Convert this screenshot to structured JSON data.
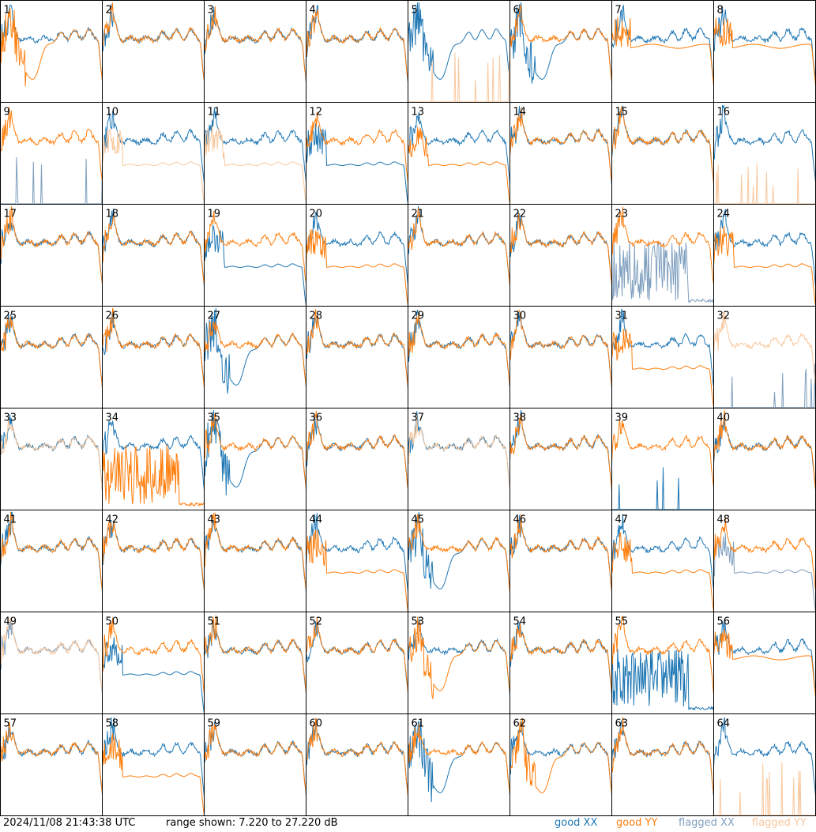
{
  "footer": {
    "timestamp": "2024/11/08 21:43:38 UTC",
    "range_text": "range shown: 7.220 to 27.220 dB"
  },
  "chart_data": {
    "type": "line",
    "grid": {
      "rows": 8,
      "cols": 8
    },
    "ylim": [
      7.22,
      27.22
    ],
    "yunit": "dB",
    "legend_placement": "bottom-right",
    "legend": [
      {
        "label": "good XX",
        "color": "#1f77b4"
      },
      {
        "label": "good YY",
        "color": "#ff7f0e"
      },
      {
        "label": "flagged XX",
        "color": "#7f9fbf"
      },
      {
        "label": "flagged YY",
        "color": "#f9c89e"
      }
    ],
    "panel_labels": [
      "1",
      "2",
      "3",
      "4",
      "5",
      "6",
      "7",
      "8",
      "9",
      "10",
      "11",
      "12",
      "13",
      "14",
      "15",
      "16",
      "17",
      "18",
      "19",
      "20",
      "21",
      "22",
      "23",
      "24",
      "25",
      "26",
      "27",
      "28",
      "29",
      "30",
      "31",
      "32",
      "33",
      "34",
      "35",
      "36",
      "37",
      "38",
      "39",
      "40",
      "41",
      "42",
      "43",
      "44",
      "45",
      "46",
      "47",
      "48",
      "49",
      "50",
      "51",
      "52",
      "53",
      "54",
      "55",
      "56",
      "57",
      "58",
      "59",
      "60",
      "61",
      "62",
      "63",
      "64"
    ],
    "panels": [
      {
        "id": 1,
        "xx": "good",
        "yy": "good",
        "xx_shape": "standard",
        "yy_shape": "dip"
      },
      {
        "id": 2,
        "xx": "good",
        "yy": "good",
        "xx_shape": "standard",
        "yy_shape": "standard"
      },
      {
        "id": 3,
        "xx": "good",
        "yy": "good",
        "xx_shape": "standard",
        "yy_shape": "standard"
      },
      {
        "id": 4,
        "xx": "good",
        "yy": "good",
        "xx_shape": "standard",
        "yy_shape": "standard"
      },
      {
        "id": 5,
        "xx": "good",
        "yy": "flagged",
        "xx_shape": "dip",
        "yy_shape": "spike"
      },
      {
        "id": 6,
        "xx": "good",
        "yy": "good",
        "xx_shape": "dip",
        "yy_shape": "standard"
      },
      {
        "id": 7,
        "xx": "good",
        "yy": "good",
        "xx_shape": "standard",
        "yy_shape": "flat"
      },
      {
        "id": 8,
        "xx": "good",
        "yy": "good",
        "xx_shape": "standard",
        "yy_shape": "flat"
      },
      {
        "id": 9,
        "xx": "flagged",
        "yy": "good",
        "xx_shape": "spike",
        "yy_shape": "standard"
      },
      {
        "id": 10,
        "xx": "good",
        "yy": "flagged",
        "xx_shape": "standard",
        "yy_shape": "low"
      },
      {
        "id": 11,
        "xx": "good",
        "yy": "flagged",
        "xx_shape": "standard",
        "yy_shape": "low"
      },
      {
        "id": 12,
        "xx": "good",
        "yy": "good",
        "xx_shape": "low",
        "yy_shape": "standard"
      },
      {
        "id": 13,
        "xx": "good",
        "yy": "good",
        "xx_shape": "standard",
        "yy_shape": "low"
      },
      {
        "id": 14,
        "xx": "good",
        "yy": "good",
        "xx_shape": "standard",
        "yy_shape": "standard"
      },
      {
        "id": 15,
        "xx": "good",
        "yy": "good",
        "xx_shape": "standard",
        "yy_shape": "standard"
      },
      {
        "id": 16,
        "xx": "good",
        "yy": "flagged",
        "xx_shape": "standard",
        "yy_shape": "spike"
      },
      {
        "id": 17,
        "xx": "good",
        "yy": "good",
        "xx_shape": "standard",
        "yy_shape": "standard"
      },
      {
        "id": 18,
        "xx": "good",
        "yy": "good",
        "xx_shape": "standard",
        "yy_shape": "standard"
      },
      {
        "id": 19,
        "xx": "good",
        "yy": "good",
        "xx_shape": "low",
        "yy_shape": "standard"
      },
      {
        "id": 20,
        "xx": "good",
        "yy": "good",
        "xx_shape": "standard",
        "yy_shape": "low"
      },
      {
        "id": 21,
        "xx": "good",
        "yy": "good",
        "xx_shape": "standard",
        "yy_shape": "standard"
      },
      {
        "id": 22,
        "xx": "good",
        "yy": "good",
        "xx_shape": "standard",
        "yy_shape": "standard"
      },
      {
        "id": 23,
        "xx": "flagged",
        "yy": "good",
        "xx_shape": "noise",
        "yy_shape": "standard"
      },
      {
        "id": 24,
        "xx": "good",
        "yy": "good",
        "xx_shape": "standard",
        "yy_shape": "low"
      },
      {
        "id": 25,
        "xx": "good",
        "yy": "good",
        "xx_shape": "standard",
        "yy_shape": "standard"
      },
      {
        "id": 26,
        "xx": "good",
        "yy": "good",
        "xx_shape": "standard",
        "yy_shape": "standard"
      },
      {
        "id": 27,
        "xx": "good",
        "yy": "good",
        "xx_shape": "dip",
        "yy_shape": "standard"
      },
      {
        "id": 28,
        "xx": "good",
        "yy": "good",
        "xx_shape": "standard",
        "yy_shape": "standard"
      },
      {
        "id": 29,
        "xx": "good",
        "yy": "good",
        "xx_shape": "standard",
        "yy_shape": "standard"
      },
      {
        "id": 30,
        "xx": "good",
        "yy": "good",
        "xx_shape": "standard",
        "yy_shape": "standard"
      },
      {
        "id": 31,
        "xx": "good",
        "yy": "good",
        "xx_shape": "standard",
        "yy_shape": "low"
      },
      {
        "id": 32,
        "xx": "flagged",
        "yy": "flagged",
        "xx_shape": "spike",
        "yy_shape": "standard"
      },
      {
        "id": 33,
        "xx": "good",
        "yy": "flagged",
        "xx_shape": "standard",
        "yy_shape": "standard"
      },
      {
        "id": 34,
        "xx": "good",
        "yy": "good",
        "xx_shape": "standard",
        "yy_shape": "noise"
      },
      {
        "id": 35,
        "xx": "good",
        "yy": "good",
        "xx_shape": "dip",
        "yy_shape": "standard"
      },
      {
        "id": 36,
        "xx": "good",
        "yy": "good",
        "xx_shape": "standard",
        "yy_shape": "standard"
      },
      {
        "id": 37,
        "xx": "good",
        "yy": "flagged",
        "xx_shape": "standard",
        "yy_shape": "standard"
      },
      {
        "id": 38,
        "xx": "good",
        "yy": "good",
        "xx_shape": "standard",
        "yy_shape": "standard"
      },
      {
        "id": 39,
        "xx": "good",
        "yy": "good",
        "xx_shape": "spike",
        "yy_shape": "standard"
      },
      {
        "id": 40,
        "xx": "good",
        "yy": "good",
        "xx_shape": "standard",
        "yy_shape": "standard"
      },
      {
        "id": 41,
        "xx": "good",
        "yy": "good",
        "xx_shape": "standard",
        "yy_shape": "standard"
      },
      {
        "id": 42,
        "xx": "good",
        "yy": "good",
        "xx_shape": "standard",
        "yy_shape": "standard"
      },
      {
        "id": 43,
        "xx": "good",
        "yy": "good",
        "xx_shape": "standard",
        "yy_shape": "standard"
      },
      {
        "id": 44,
        "xx": "good",
        "yy": "good",
        "xx_shape": "standard",
        "yy_shape": "low"
      },
      {
        "id": 45,
        "xx": "good",
        "yy": "good",
        "xx_shape": "dip",
        "yy_shape": "standard"
      },
      {
        "id": 46,
        "xx": "good",
        "yy": "good",
        "xx_shape": "standard",
        "yy_shape": "standard"
      },
      {
        "id": 47,
        "xx": "good",
        "yy": "good",
        "xx_shape": "standard",
        "yy_shape": "low"
      },
      {
        "id": 48,
        "xx": "flagged",
        "yy": "good",
        "xx_shape": "low",
        "yy_shape": "standard"
      },
      {
        "id": 49,
        "xx": "flagged",
        "yy": "flagged",
        "xx_shape": "standard",
        "yy_shape": "standard"
      },
      {
        "id": 50,
        "xx": "good",
        "yy": "good",
        "xx_shape": "low",
        "yy_shape": "standard"
      },
      {
        "id": 51,
        "xx": "good",
        "yy": "good",
        "xx_shape": "standard",
        "yy_shape": "standard"
      },
      {
        "id": 52,
        "xx": "good",
        "yy": "good",
        "xx_shape": "standard",
        "yy_shape": "standard"
      },
      {
        "id": 53,
        "xx": "good",
        "yy": "good",
        "xx_shape": "standard",
        "yy_shape": "dip"
      },
      {
        "id": 54,
        "xx": "good",
        "yy": "good",
        "xx_shape": "standard",
        "yy_shape": "standard"
      },
      {
        "id": 55,
        "xx": "good",
        "yy": "good",
        "xx_shape": "noise",
        "yy_shape": "standard"
      },
      {
        "id": 56,
        "xx": "good",
        "yy": "good",
        "xx_shape": "standard",
        "yy_shape": "flat"
      },
      {
        "id": 57,
        "xx": "good",
        "yy": "good",
        "xx_shape": "standard",
        "yy_shape": "standard"
      },
      {
        "id": 58,
        "xx": "good",
        "yy": "good",
        "xx_shape": "standard",
        "yy_shape": "low"
      },
      {
        "id": 59,
        "xx": "good",
        "yy": "good",
        "xx_shape": "standard",
        "yy_shape": "standard"
      },
      {
        "id": 60,
        "xx": "good",
        "yy": "good",
        "xx_shape": "standard",
        "yy_shape": "standard"
      },
      {
        "id": 61,
        "xx": "good",
        "yy": "good",
        "xx_shape": "dip",
        "yy_shape": "standard"
      },
      {
        "id": 62,
        "xx": "good",
        "yy": "good",
        "xx_shape": "standard",
        "yy_shape": "dip"
      },
      {
        "id": 63,
        "xx": "good",
        "yy": "good",
        "xx_shape": "standard",
        "yy_shape": "standard"
      },
      {
        "id": 64,
        "xx": "good",
        "yy": "flagged",
        "xx_shape": "standard",
        "yy_shape": "spike"
      }
    ]
  }
}
